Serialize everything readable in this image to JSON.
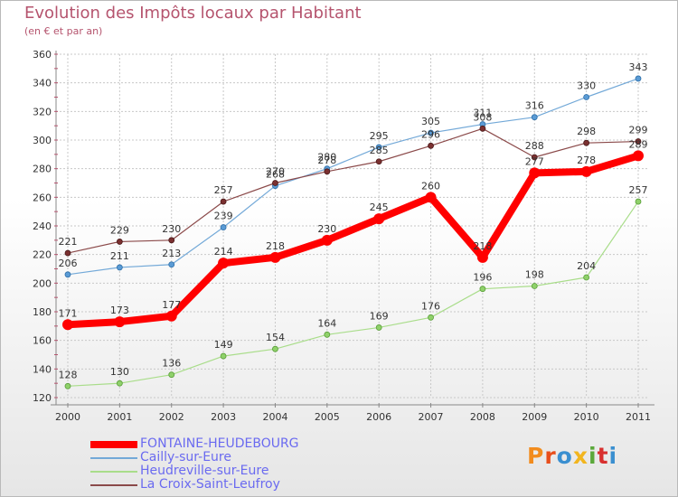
{
  "chart_data": {
    "type": "line",
    "title": "Evolution des Impôts locaux par Habitant",
    "subtitle": "(en € et par an)",
    "xlabel": "",
    "ylabel": "",
    "x": [
      "2000",
      "2001",
      "2002",
      "2003",
      "2004",
      "2005",
      "2006",
      "2007",
      "2008",
      "2009",
      "2010",
      "2011"
    ],
    "ylim": [
      120,
      360
    ],
    "yticks": [
      120,
      140,
      160,
      180,
      200,
      220,
      240,
      260,
      280,
      300,
      320,
      340,
      360
    ],
    "grid": true,
    "legend_position": "bottom-left",
    "series": [
      {
        "name": "FONTAINE-HEUDEBOURG",
        "color": "#ff0000",
        "values": [
          171,
          173,
          177,
          214,
          218,
          230,
          245,
          260,
          218,
          277,
          278,
          289
        ]
      },
      {
        "name": "Cailly-sur-Eure",
        "color": "#5a9bd5",
        "values": [
          206,
          211,
          213,
          239,
          268,
          280,
          295,
          305,
          311,
          316,
          330,
          343
        ]
      },
      {
        "name": "Heudreville-sur-Eure",
        "color": "#8fd16a",
        "values": [
          128,
          130,
          136,
          149,
          154,
          164,
          169,
          176,
          196,
          198,
          204,
          257
        ]
      },
      {
        "name": "La Croix-Saint-Leufroy",
        "color": "#7b3030",
        "values": [
          221,
          229,
          230,
          257,
          270,
          278,
          285,
          296,
          308,
          288,
          298,
          299
        ]
      }
    ]
  },
  "logo": {
    "text": "Proxiti",
    "colors": [
      "#f28c1e",
      "#e84e1b",
      "#3a8fd0",
      "#f2b51e",
      "#5aa83a",
      "#d8302f",
      "#3a8fd0"
    ]
  }
}
